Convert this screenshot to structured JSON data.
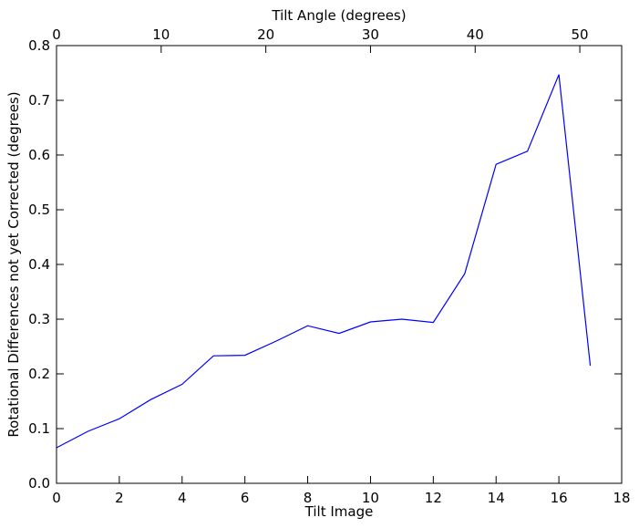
{
  "chart_data": {
    "type": "line",
    "title": "",
    "xlabel": "Tilt Image",
    "ylabel": "Rotational Differences not yet Corrected (degrees)",
    "top_xlabel": "Tilt Angle (degrees)",
    "xlim": [
      0,
      18
    ],
    "ylim": [
      0,
      0.8
    ],
    "top_xlim": [
      0,
      54
    ],
    "grid": false,
    "legend": "none",
    "xticks": [
      "0",
      "2",
      "4",
      "6",
      "8",
      "10",
      "12",
      "14",
      "16",
      "18"
    ],
    "yticks": [
      "0.0",
      "0.1",
      "0.2",
      "0.3",
      "0.4",
      "0.5",
      "0.6",
      "0.7",
      "0.8"
    ],
    "top_xticks": [
      "0",
      "10",
      "20",
      "30",
      "40",
      "50"
    ],
    "series": [
      {
        "color": "#0000ff",
        "x": [
          0,
          1,
          2,
          3,
          4,
          5,
          6,
          7,
          8,
          9,
          10,
          11,
          12,
          13,
          14,
          15,
          16,
          17
        ],
        "y": [
          0.065,
          0.095,
          0.118,
          0.153,
          0.181,
          0.233,
          0.234,
          0.26,
          0.288,
          0.274,
          0.295,
          0.3,
          0.294,
          0.383,
          0.583,
          0.607,
          0.747,
          0.215
        ]
      }
    ]
  }
}
